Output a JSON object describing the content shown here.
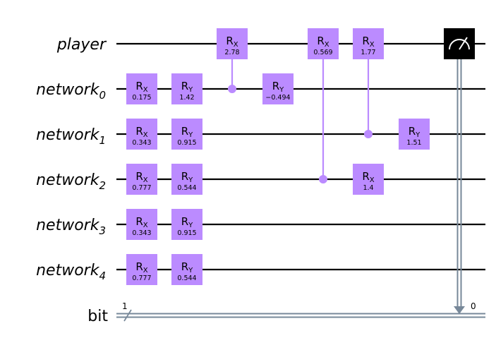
{
  "qubits": [
    {
      "name": "player",
      "sub": ""
    },
    {
      "name": "network",
      "sub": "0"
    },
    {
      "name": "network",
      "sub": "1"
    },
    {
      "name": "network",
      "sub": "2"
    },
    {
      "name": "network",
      "sub": "3"
    },
    {
      "name": "network",
      "sub": "4"
    }
  ],
  "classical": {
    "name": "bit",
    "width": "1",
    "measure_index": "0"
  },
  "gates": [
    {
      "type": "RX",
      "name": "R",
      "sub": "X",
      "param": "0.175",
      "qubit": 1,
      "col": 0
    },
    {
      "type": "RY",
      "name": "R",
      "sub": "Y",
      "param": "1.42",
      "qubit": 1,
      "col": 1
    },
    {
      "type": "RX",
      "name": "R",
      "sub": "X",
      "param": "0.343",
      "qubit": 2,
      "col": 0
    },
    {
      "type": "RY",
      "name": "R",
      "sub": "Y",
      "param": "0.915",
      "qubit": 2,
      "col": 1
    },
    {
      "type": "RX",
      "name": "R",
      "sub": "X",
      "param": "0.777",
      "qubit": 3,
      "col": 0
    },
    {
      "type": "RY",
      "name": "R",
      "sub": "Y",
      "param": "0.544",
      "qubit": 3,
      "col": 1
    },
    {
      "type": "RX",
      "name": "R",
      "sub": "X",
      "param": "0.343",
      "qubit": 4,
      "col": 0
    },
    {
      "type": "RY",
      "name": "R",
      "sub": "Y",
      "param": "0.915",
      "qubit": 4,
      "col": 1
    },
    {
      "type": "RX",
      "name": "R",
      "sub": "X",
      "param": "0.777",
      "qubit": 5,
      "col": 0
    },
    {
      "type": "RY",
      "name": "R",
      "sub": "Y",
      "param": "0.544",
      "qubit": 5,
      "col": 1
    },
    {
      "type": "CRX",
      "name": "R",
      "sub": "X",
      "param": "2.78",
      "qubit": 0,
      "control": 1,
      "col": 2
    },
    {
      "type": "RY",
      "name": "R",
      "sub": "Y",
      "param": "−0.494",
      "qubit": 1,
      "col": 3
    },
    {
      "type": "CRX",
      "name": "R",
      "sub": "X",
      "param": "0.569",
      "qubit": 0,
      "control": 3,
      "col": 4
    },
    {
      "type": "CRX",
      "name": "R",
      "sub": "X",
      "param": "1.77",
      "qubit": 0,
      "control": 2,
      "col": 5
    },
    {
      "type": "RX",
      "name": "R",
      "sub": "X",
      "param": "1.4",
      "qubit": 3,
      "col": 5
    },
    {
      "type": "RY",
      "name": "R",
      "sub": "Y",
      "param": "1.51",
      "qubit": 2,
      "col": 6
    }
  ],
  "measure": {
    "qubit": 0,
    "col": 7
  },
  "colors": {
    "gate": "#bb8bff",
    "wire": "#000000",
    "classical": "#778899",
    "measure_bg": "#000000",
    "measure_fg": "#ffffff"
  }
}
